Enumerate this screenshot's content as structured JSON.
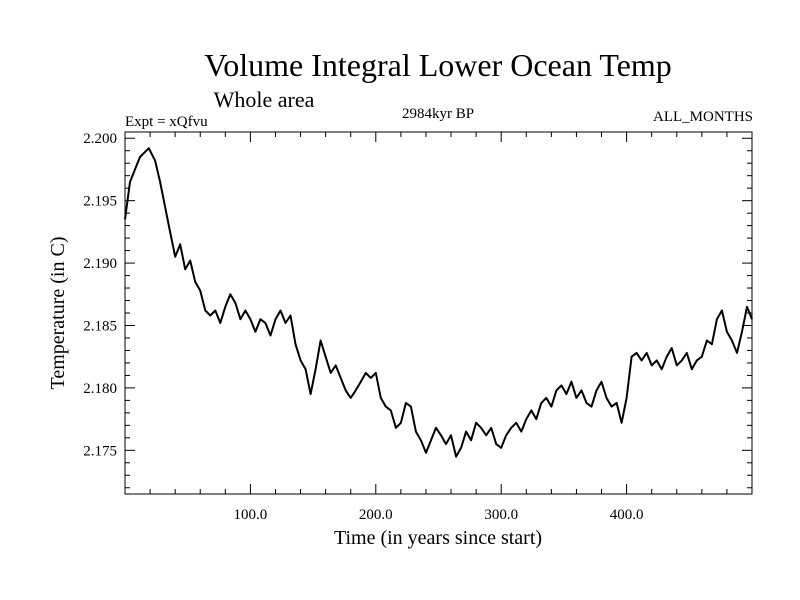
{
  "chart_data": {
    "type": "line",
    "title": "Volume Integral Lower Ocean Temp",
    "subtitle": "Whole area",
    "left_label": "Expt = xQfvu",
    "center_label": "2984kyr BP",
    "right_label": "ALL_MONTHS",
    "xlabel": "Time (in years since start)",
    "ylabel": "Temperature (in C)",
    "xlim": [
      0,
      500
    ],
    "ylim": [
      2.1715,
      2.2005
    ],
    "xticks": [
      100,
      200,
      300,
      400
    ],
    "xtick_labels": [
      "100.0",
      "200.0",
      "300.0",
      "400.0"
    ],
    "yticks": [
      2.175,
      2.18,
      2.185,
      2.19,
      2.195,
      2.2
    ],
    "ytick_labels": [
      "2.175",
      "2.180",
      "2.185",
      "2.190",
      "2.195",
      "2.200"
    ],
    "grid": false,
    "line_color": "#000000",
    "series": [
      {
        "name": "Volume Integral Lower Ocean Temp",
        "x": [
          0,
          4,
          8,
          12,
          15,
          19,
          24,
          28,
          32,
          36,
          40,
          44,
          48,
          52,
          56,
          60,
          64,
          68,
          72,
          76,
          80,
          84,
          88,
          92,
          96,
          100,
          104,
          108,
          112,
          116,
          120,
          124,
          128,
          132,
          136,
          140,
          144,
          148,
          152,
          156,
          160,
          164,
          168,
          172,
          176,
          180,
          184,
          188,
          192,
          196,
          200,
          204,
          208,
          212,
          216,
          220,
          224,
          228,
          232,
          236,
          240,
          244,
          248,
          252,
          256,
          260,
          264,
          268,
          272,
          276,
          280,
          284,
          288,
          292,
          296,
          300,
          304,
          308,
          312,
          316,
          320,
          324,
          328,
          332,
          336,
          340,
          344,
          348,
          352,
          356,
          360,
          364,
          368,
          372,
          376,
          380,
          384,
          388,
          392,
          396,
          400,
          404,
          408,
          412,
          416,
          420,
          424,
          428,
          432,
          436,
          440,
          444,
          448,
          452,
          456,
          460,
          464,
          468,
          472,
          476,
          480,
          484,
          488,
          492,
          496,
          500
        ],
        "values": [
          2.1935,
          2.1965,
          2.1975,
          2.1985,
          2.1988,
          2.1992,
          2.1982,
          2.1965,
          2.1945,
          2.1925,
          2.1905,
          2.1915,
          2.1895,
          2.1902,
          2.1885,
          2.1878,
          2.1862,
          2.1858,
          2.1862,
          2.1852,
          2.1865,
          2.1875,
          2.1868,
          2.1855,
          2.1862,
          2.1855,
          2.1845,
          2.1855,
          2.1852,
          2.1842,
          2.1855,
          2.1862,
          2.1852,
          2.1858,
          2.1835,
          2.1822,
          2.1815,
          2.1795,
          2.1815,
          2.1838,
          2.1825,
          2.1812,
          2.1818,
          2.1808,
          2.1798,
          2.1792,
          2.1798,
          2.1805,
          2.1812,
          2.1808,
          2.1812,
          2.1792,
          2.1785,
          2.1782,
          2.1768,
          2.1772,
          2.1788,
          2.1785,
          2.1765,
          2.1758,
          2.1748,
          2.1758,
          2.1768,
          2.1762,
          2.1755,
          2.1762,
          2.1745,
          2.1752,
          2.1765,
          2.1758,
          2.1772,
          2.1768,
          2.1762,
          2.1768,
          2.1755,
          2.1752,
          2.1762,
          2.1768,
          2.1772,
          2.1765,
          2.1775,
          2.1782,
          2.1775,
          2.1788,
          2.1792,
          2.1785,
          2.1798,
          2.1802,
          2.1795,
          2.1805,
          2.1792,
          2.1798,
          2.1788,
          2.1785,
          2.1798,
          2.1805,
          2.1792,
          2.1785,
          2.1788,
          2.1772,
          2.1792,
          2.1825,
          2.1828,
          2.1822,
          2.1828,
          2.1818,
          2.1822,
          2.1815,
          2.1825,
          2.1832,
          2.1818,
          2.1822,
          2.1828,
          2.1815,
          2.1822,
          2.1825,
          2.1838,
          2.1835,
          2.1855,
          2.1862,
          2.1845,
          2.1838,
          2.1828,
          2.1845,
          2.1865,
          2.1855
        ]
      }
    ]
  }
}
